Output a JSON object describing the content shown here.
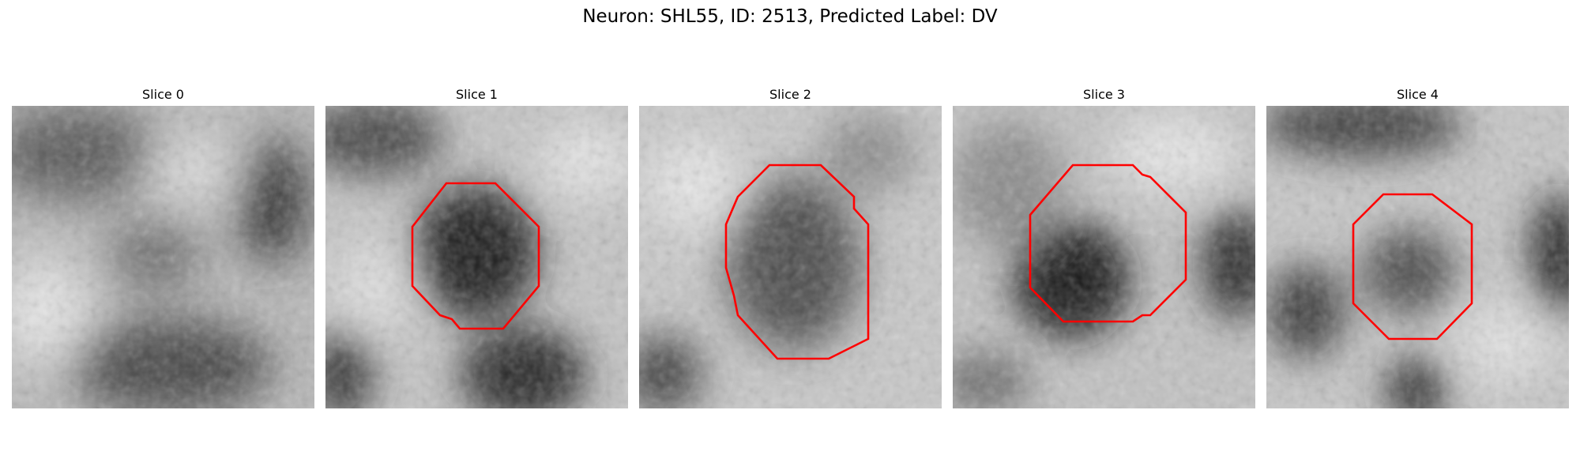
{
  "figure": {
    "title": "Neuron: SHL55, ID: 2513, Predicted Label: DV",
    "contour_color": "#ff0000",
    "slices": [
      {
        "label": "Slice 0"
      },
      {
        "label": "Slice 1"
      },
      {
        "label": "Slice 2"
      },
      {
        "label": "Slice 3"
      },
      {
        "label": "Slice 4"
      }
    ]
  }
}
